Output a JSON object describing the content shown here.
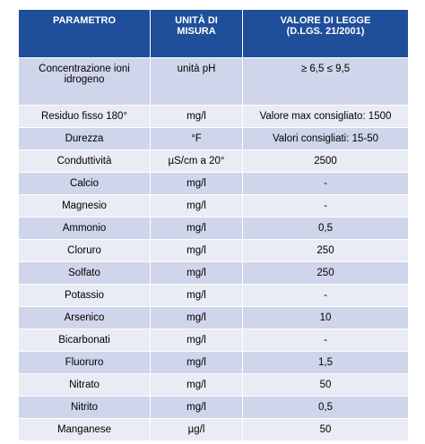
{
  "table": {
    "header": [
      "PARAMETRO",
      "UNITÀ DI MISURA",
      [
        "VALORE DI LEGGE",
        "(D.LGS. 21/2001)"
      ]
    ],
    "rows": [
      [
        "Concentrazione ioni idrogeno",
        "unità pH",
        "≥ 6,5 ≤ 9,5"
      ],
      [
        "Residuo fisso 180°",
        "mg/l",
        "Valore max consigliato: 1500"
      ],
      [
        "Durezza",
        "°F",
        "Valori consigliati: 15-50"
      ],
      [
        "Conduttività",
        "µS/cm a 20°",
        "2500"
      ],
      [
        "Calcio",
        "mg/l",
        "-"
      ],
      [
        "Magnesio",
        "mg/l",
        "-"
      ],
      [
        "Ammonio",
        "mg/l",
        "0,5"
      ],
      [
        "Cloruro",
        "mg/l",
        "250"
      ],
      [
        "Solfato",
        "mg/l",
        "250"
      ],
      [
        "Potassio",
        "mg/l",
        "-"
      ],
      [
        "Arsenico",
        "mg/l",
        "10"
      ],
      [
        "Bicarbonati",
        "mg/l",
        "-"
      ],
      [
        "Fluoruro",
        "mg/l",
        "1,5"
      ],
      [
        "Nitrato",
        "mg/l",
        "50"
      ],
      [
        "Nitrito",
        "mg/l",
        "0,5"
      ],
      [
        "Manganese",
        "µg/l",
        "50"
      ]
    ]
  }
}
